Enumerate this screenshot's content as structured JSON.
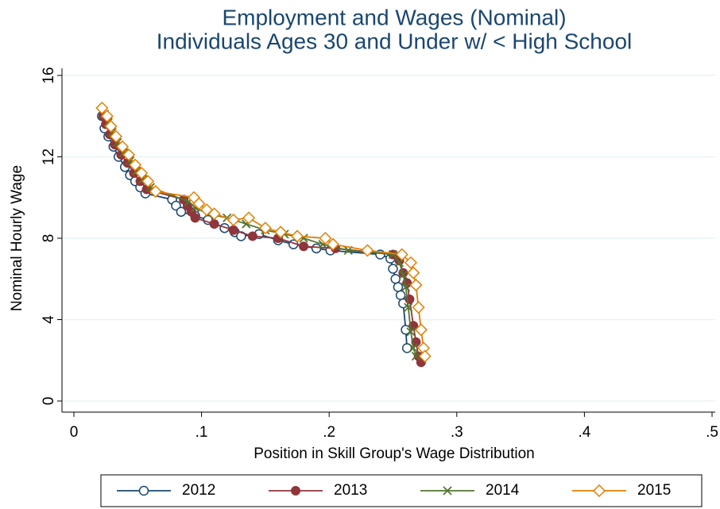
{
  "chart_data": {
    "type": "line",
    "title": "Employment and Wages (Nominal)",
    "subtitle": "Individuals Ages 30 and Under w/ < High School",
    "x_label": "Position in Skill Group's Wage Distribution",
    "y_label": "Nominal Hourly Wage",
    "xlim": [
      0,
      0.5
    ],
    "xticks": [
      0,
      {
        "value": 0.1,
        "label": ".1"
      },
      {
        "value": 0.2,
        "label": ".2"
      },
      {
        "value": 0.3,
        "label": ".3"
      },
      {
        "value": 0.4,
        "label": ".4"
      },
      {
        "value": 0.5,
        "label": ".5"
      }
    ],
    "ylim": [
      0,
      16
    ],
    "yticks": [
      0,
      4,
      8,
      12,
      16
    ],
    "grid": true,
    "legend": "bottom",
    "series": [
      {
        "name": "2012",
        "color": "#1a476f",
        "marker": "circle-hollow",
        "x": [
          0.022,
          0.024,
          0.027,
          0.031,
          0.035,
          0.04,
          0.044,
          0.048,
          0.052,
          0.056,
          0.077,
          0.08,
          0.084,
          0.095,
          0.105,
          0.118,
          0.126,
          0.131,
          0.145,
          0.16,
          0.172,
          0.19,
          0.201,
          0.24,
          0.248,
          0.25,
          0.252,
          0.254,
          0.256,
          0.258,
          0.26,
          0.261
        ],
        "values": [
          14.0,
          13.4,
          13.0,
          12.5,
          12.0,
          11.5,
          11.1,
          10.8,
          10.5,
          10.2,
          9.9,
          9.6,
          9.3,
          9.1,
          8.9,
          8.5,
          8.3,
          8.1,
          8.2,
          7.9,
          7.7,
          7.5,
          7.4,
          7.2,
          7.0,
          6.5,
          6.0,
          5.6,
          5.2,
          4.8,
          3.5,
          2.6
        ]
      },
      {
        "name": "2013",
        "color": "#90353b",
        "marker": "circle",
        "x": [
          0.023,
          0.025,
          0.028,
          0.032,
          0.037,
          0.042,
          0.047,
          0.052,
          0.057,
          0.086,
          0.089,
          0.092,
          0.095,
          0.11,
          0.125,
          0.14,
          0.16,
          0.18,
          0.205,
          0.25,
          0.255,
          0.258,
          0.261,
          0.263,
          0.266,
          0.268,
          0.27,
          0.272
        ],
        "values": [
          14.0,
          13.6,
          13.1,
          12.6,
          12.1,
          11.7,
          11.2,
          10.8,
          10.4,
          9.9,
          9.6,
          9.3,
          9.0,
          8.7,
          8.4,
          8.1,
          8.0,
          7.6,
          7.5,
          7.2,
          6.9,
          6.3,
          5.8,
          5.0,
          3.7,
          2.9,
          2.2,
          1.9
        ]
      },
      {
        "name": "2014",
        "color": "#55752f",
        "marker": "x",
        "x": [
          0.024,
          0.027,
          0.03,
          0.034,
          0.039,
          0.044,
          0.049,
          0.054,
          0.06,
          0.09,
          0.095,
          0.105,
          0.12,
          0.135,
          0.15,
          0.165,
          0.18,
          0.195,
          0.215,
          0.25,
          0.255,
          0.258,
          0.26,
          0.262,
          0.264,
          0.266,
          0.268
        ],
        "values": [
          14.1,
          13.7,
          13.2,
          12.7,
          12.2,
          11.8,
          11.3,
          10.9,
          10.5,
          9.8,
          9.5,
          9.2,
          9.0,
          8.7,
          8.4,
          8.2,
          8.0,
          7.7,
          7.4,
          7.2,
          6.8,
          6.2,
          5.6,
          4.6,
          3.4,
          2.6,
          2.2
        ]
      },
      {
        "name": "2015",
        "color": "#e37e00",
        "marker": "diamond",
        "x": [
          0.022,
          0.026,
          0.029,
          0.033,
          0.038,
          0.043,
          0.048,
          0.053,
          0.058,
          0.064,
          0.094,
          0.098,
          0.104,
          0.11,
          0.125,
          0.137,
          0.15,
          0.162,
          0.175,
          0.197,
          0.203,
          0.23,
          0.257,
          0.264,
          0.266,
          0.268,
          0.27,
          0.272,
          0.274,
          0.275
        ],
        "values": [
          14.4,
          14.0,
          13.5,
          13.0,
          12.5,
          12.1,
          11.6,
          11.2,
          10.8,
          10.3,
          10.0,
          9.7,
          9.4,
          9.2,
          8.9,
          9.0,
          8.5,
          8.3,
          8.1,
          8.0,
          7.7,
          7.4,
          7.2,
          6.8,
          6.3,
          5.7,
          4.6,
          3.5,
          2.6,
          2.2
        ]
      }
    ]
  }
}
